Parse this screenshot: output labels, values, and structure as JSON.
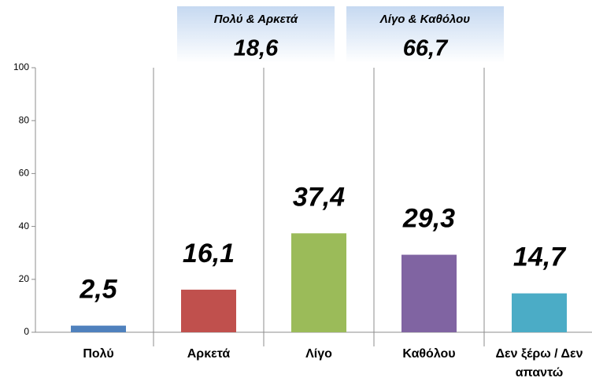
{
  "chart_data": {
    "type": "bar",
    "categories": [
      "Πολύ",
      "Αρκετά",
      "Λίγο",
      "Καθόλου",
      "Δεν ξέρω / Δεν απαντώ"
    ],
    "values": [
      2.5,
      16.1,
      37.4,
      29.3,
      14.7
    ],
    "value_labels": [
      "2,5",
      "16,1",
      "37,4",
      "29,3",
      "14,7"
    ],
    "colors": [
      "#4f81bd",
      "#c0504d",
      "#9bbb59",
      "#8064a2",
      "#4bacc6"
    ],
    "ylim": [
      0,
      100
    ],
    "yticks": [
      0,
      20,
      40,
      60,
      80,
      100
    ],
    "annotations": [
      {
        "title": "Πολύ & Αρκετά",
        "text": "18,6"
      },
      {
        "title": "Λίγο & Καθόλου",
        "text": "66,7"
      }
    ]
  }
}
